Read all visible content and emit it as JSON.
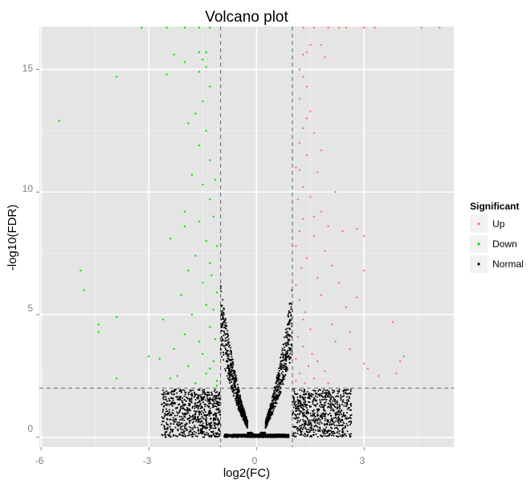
{
  "chart_data": {
    "type": "scatter",
    "title": "Volcano plot",
    "xlabel": "log2(FC)",
    "ylabel": "-log10(FDR)",
    "xlim": [
      -6.05,
      5.5
    ],
    "ylim": [
      -0.4,
      16.75
    ],
    "x_ticks": [
      -6,
      -3,
      0,
      3
    ],
    "x_tick_labels": [
      "-6",
      "-3",
      "0",
      "3"
    ],
    "y_ticks": [
      0,
      5,
      10,
      15
    ],
    "y_tick_labels": [
      "0",
      "5",
      "10",
      "15"
    ],
    "grid": true,
    "thresholds": {
      "log2fc": [
        -1,
        1
      ],
      "neg_log10_fdr": 2
    },
    "legend": {
      "title": "Significant",
      "position": "right",
      "entries": [
        {
          "label": "Up",
          "color": "#F8766D"
        },
        {
          "label": "Down",
          "color": "#00E400"
        },
        {
          "label": "Normal",
          "color": "#000000"
        }
      ]
    },
    "colors": {
      "panel": "#E5E5E5",
      "grid_major": "#FFFFFF",
      "grid_minor": "#F2F2F2",
      "threshold_line": "#666666"
    },
    "series": [
      {
        "name": "Up",
        "color": "#F8766D",
        "points": [
          [
            1.3,
            15.6
          ],
          [
            1.4,
            15.7
          ],
          [
            1.5,
            16.0
          ],
          [
            1.8,
            16.0
          ],
          [
            1.2,
            15.0
          ],
          [
            1.3,
            14.7
          ],
          [
            1.4,
            14.3
          ],
          [
            1.2,
            13.8
          ],
          [
            1.5,
            13.3
          ],
          [
            1.3,
            12.6
          ],
          [
            1.6,
            12.4
          ],
          [
            1.4,
            11.5
          ],
          [
            1.2,
            10.9
          ],
          [
            1.7,
            10.8
          ],
          [
            1.3,
            10.2
          ],
          [
            1.5,
            9.8
          ],
          [
            1.8,
            9.2
          ],
          [
            1.3,
            8.9
          ],
          [
            2.0,
            8.6
          ],
          [
            1.6,
            8.2
          ],
          [
            1.9,
            7.6
          ],
          [
            1.4,
            7.3
          ],
          [
            2.1,
            7.0
          ],
          [
            1.7,
            6.5
          ],
          [
            2.4,
            8.4
          ],
          [
            2.8,
            8.5
          ],
          [
            3.0,
            8.2
          ],
          [
            3.0,
            6.8
          ],
          [
            2.8,
            5.7
          ],
          [
            2.5,
            5.3
          ],
          [
            2.1,
            4.6
          ],
          [
            2.6,
            4.3
          ],
          [
            2.2,
            3.9
          ],
          [
            3.0,
            3.0
          ],
          [
            3.1,
            2.8
          ],
          [
            3.4,
            2.5
          ],
          [
            3.8,
            4.7
          ],
          [
            4.1,
            3.3
          ],
          [
            4.0,
            3.1
          ],
          [
            3.9,
            2.6
          ],
          [
            1.1,
            11.0
          ],
          [
            1.15,
            9.7
          ],
          [
            1.2,
            8.4
          ],
          [
            1.1,
            7.8
          ],
          [
            1.25,
            6.9
          ],
          [
            1.1,
            6.2
          ],
          [
            1.2,
            5.6
          ],
          [
            1.35,
            5.1
          ],
          [
            1.5,
            4.4
          ],
          [
            1.15,
            4.1
          ],
          [
            1.3,
            3.7
          ],
          [
            1.55,
            3.4
          ],
          [
            1.7,
            3.1
          ],
          [
            1.45,
            2.9
          ],
          [
            1.9,
            2.7
          ],
          [
            1.2,
            2.6
          ],
          [
            1.6,
            2.4
          ],
          [
            1.1,
            2.3
          ],
          [
            2.0,
            2.2
          ],
          [
            1.8,
            5.8
          ],
          [
            2.3,
            6.3
          ],
          [
            2.6,
            3.6
          ],
          [
            1.3,
            4.8
          ],
          [
            1.6,
            9.0
          ],
          [
            1.2,
            12.0
          ],
          [
            1.4,
            13.0
          ],
          [
            1.8,
            11.7
          ],
          [
            2.2,
            10.0
          ],
          [
            1.1,
            3.2
          ],
          [
            1.35,
            2.2
          ],
          [
            1.9,
            15.5
          ],
          [
            1.3,
            16.7
          ],
          [
            1.6,
            16.7
          ],
          [
            2.0,
            16.7
          ],
          [
            2.3,
            16.7
          ],
          [
            2.5,
            16.7
          ],
          [
            3.0,
            16.7
          ],
          [
            3.3,
            16.7
          ],
          [
            4.6,
            16.7
          ],
          [
            5.1,
            16.7
          ]
        ]
      },
      {
        "name": "Down",
        "color": "#00E400",
        "points": [
          [
            -5.5,
            12.9
          ],
          [
            -3.9,
            14.7
          ],
          [
            -2.3,
            15.6
          ],
          [
            -2.5,
            14.8
          ],
          [
            -2.0,
            15.3
          ],
          [
            -1.6,
            15.7
          ],
          [
            -1.4,
            15.7
          ],
          [
            -1.5,
            15.4
          ],
          [
            -1.4,
            15.1
          ],
          [
            -1.6,
            14.9
          ],
          [
            -1.3,
            14.3
          ],
          [
            -1.5,
            13.7
          ],
          [
            -1.7,
            13.2
          ],
          [
            -1.9,
            12.8
          ],
          [
            -1.4,
            12.5
          ],
          [
            -1.6,
            11.9
          ],
          [
            -1.3,
            11.3
          ],
          [
            -1.8,
            10.7
          ],
          [
            -1.5,
            10.3
          ],
          [
            -1.3,
            9.7
          ],
          [
            -2.0,
            9.2
          ],
          [
            -1.6,
            8.8
          ],
          [
            -2.0,
            8.6
          ],
          [
            -2.4,
            8.1
          ],
          [
            -1.4,
            8.0
          ],
          [
            -1.7,
            7.4
          ],
          [
            -1.3,
            7.1
          ],
          [
            -1.9,
            6.8
          ],
          [
            -1.5,
            6.3
          ],
          [
            -2.1,
            5.8
          ],
          [
            -1.4,
            5.4
          ],
          [
            -1.8,
            5.0
          ],
          [
            -2.6,
            4.8
          ],
          [
            -1.3,
            4.5
          ],
          [
            -2.0,
            4.2
          ],
          [
            -1.6,
            3.9
          ],
          [
            -2.3,
            3.6
          ],
          [
            -1.5,
            3.4
          ],
          [
            -2.7,
            3.2
          ],
          [
            -1.2,
            3.1
          ],
          [
            -1.9,
            2.9
          ],
          [
            -1.4,
            2.6
          ],
          [
            -2.2,
            2.5
          ],
          [
            -1.1,
            2.3
          ],
          [
            -1.7,
            2.2
          ],
          [
            -2.4,
            2.4
          ],
          [
            -3.0,
            3.3
          ],
          [
            -3.9,
            4.9
          ],
          [
            -4.4,
            4.6
          ],
          [
            -4.4,
            4.3
          ],
          [
            -4.8,
            6.0
          ],
          [
            -4.9,
            6.8
          ],
          [
            -3.9,
            2.4
          ],
          [
            -1.15,
            10.5
          ],
          [
            -1.2,
            9.0
          ],
          [
            -1.1,
            7.8
          ],
          [
            -1.25,
            6.6
          ],
          [
            -1.1,
            5.9
          ],
          [
            -1.2,
            5.2
          ],
          [
            -1.15,
            4.0
          ],
          [
            -1.3,
            2.8
          ],
          [
            -1.1,
            2.1
          ],
          [
            -2.5,
            16.7
          ],
          [
            -2.0,
            16.7
          ],
          [
            -1.6,
            16.7
          ],
          [
            -1.3,
            16.7
          ],
          [
            -3.2,
            16.7
          ]
        ]
      },
      {
        "name": "Normal",
        "color": "#000000",
        "points": "V-shaped cloud of several thousand non-significant genes (|log2FC| < 1 or -log10(FDR) < 2), spanning log2FC -2.5 to 2.7 and -log10(FDR) 0 to 7"
      }
    ]
  }
}
